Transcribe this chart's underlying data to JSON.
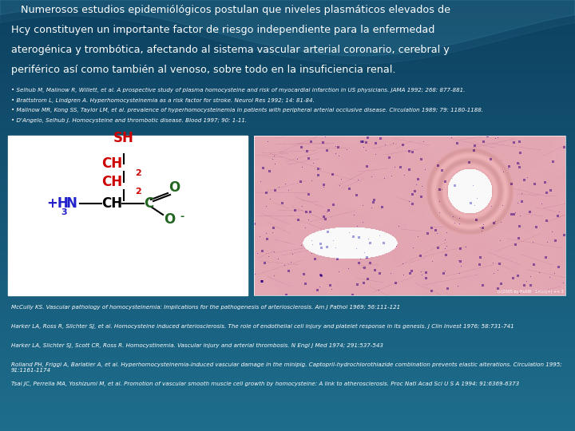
{
  "bg_color_top": "#1e6d8c",
  "bg_color_bottom": "#0c4060",
  "title_lines": [
    "   Numerosos estudios epidemiólógicos postulan que niveles plasmáticos elevados de",
    "Hcy constituyen un importante factor de riesgo independiente para la enfermedad",
    "aterogénica y trombótica, afectando al sistema vascular arterial coronario, cerebral y",
    "periférico así como también al venoso, sobre todo en la insuficiencia renal."
  ],
  "refs_top": [
    "• Selhub M, Malinow R, Willett, et al. A prospective study of plasma homocysteine and risk of myocardial infarction in US physicians. JAMA 1992; 268: 877-881.",
    "• Brattstrom L, Lindgren A. Hyperhomocysteinemia as a risk factor for stroke. Neurol Res 1992; 14: 81-84.",
    "• Malinow MR, Kong SS, Taylor LM, et al. prevalence of hyperhomocysteinemia in patients with peripheral arterial occlusive disease. Circulation 1989; 79: 1180-1188.",
    "• D'Angelo, Selhub J. Homocysteine and thrombotic disease. Blood 1997; 90: 1-11."
  ],
  "refs_bottom": [
    "McCully KS. Vascular pathology of homocysteinemia: Implications for the pathogenesis of arteriosclerosis. Am J Pathol 1969; 56:111-121",
    "Harker LA, Ross R, Slichter SJ, et al. Homocysteine induced arteriosclerosis. The role of endothelial cell injury and platelet response in its genesis. J Clin Invest 1976; 58:731-741",
    "Harker LA, Slichter SJ, Scott CR, Ross R. Homocystinemia. Vascular injury and arterial thrombosis. N Engl J Med 1974; 291:537-543",
    "Rolland PH, Friggi A, Barlatier A, et al. Hyperhomocysteinemia-induced vascular damage in the minipig. Captopril-hydrochlorothiazide combination prevents elastic alterations. Circulation 1995; 91:1161-1174",
    "Tsai JC, Perrella MA, Yoshizumi M, et al. Promotion of vascular smooth muscle cell growth by homocysteine: A link to atherosclerosis. Proc Natl Acad Sci U S A 1994; 91:6369-6373"
  ],
  "text_color": "#ffffff",
  "chem_sh_color": "#cc0000",
  "chem_ch_color": "#cc0000",
  "chem_n_color": "#2222cc",
  "chem_c_color": "#226622",
  "chem_o_color": "#226622",
  "line_color": "#000000"
}
